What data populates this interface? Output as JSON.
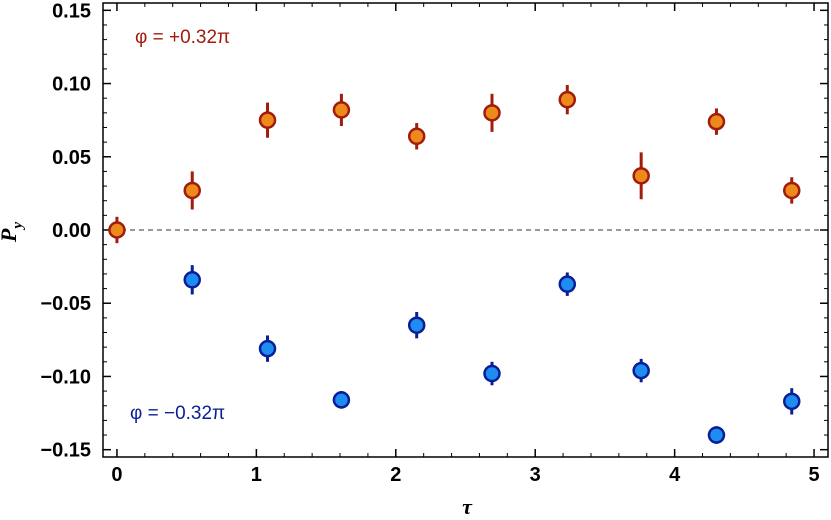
{
  "chart_data": {
    "type": "scatter",
    "title": "",
    "xlabel": "τ",
    "ylabel": "P",
    "ylabel_sub": "y",
    "xlim": [
      -0.1,
      5.1
    ],
    "ylim": [
      -0.155,
      0.155
    ],
    "xticks": [
      0,
      1,
      2,
      3,
      4,
      5
    ],
    "xtick_labels": [
      "0",
      "1",
      "2",
      "3",
      "4",
      "5"
    ],
    "yticks": [
      -0.15,
      -0.1,
      -0.05,
      0.0,
      0.05,
      0.1,
      0.15
    ],
    "ytick_labels": [
      "-0.15",
      "-0.10",
      "-0.05",
      "0.00",
      "0.05",
      "0.10",
      "0.15"
    ],
    "grid": false,
    "reference_line": {
      "y": 0,
      "style": "dashed"
    },
    "series": [
      {
        "name": "φ = +0.32π",
        "fill": "#ee8a1c",
        "stroke": "#a01c0c",
        "points": [
          {
            "x": 0.0,
            "y": 0.0,
            "err": 0.009
          },
          {
            "x": 0.54,
            "y": 0.027,
            "err": 0.013
          },
          {
            "x": 1.08,
            "y": 0.075,
            "err": 0.012
          },
          {
            "x": 1.61,
            "y": 0.082,
            "err": 0.011
          },
          {
            "x": 2.15,
            "y": 0.064,
            "err": 0.009
          },
          {
            "x": 2.69,
            "y": 0.08,
            "err": 0.013
          },
          {
            "x": 3.23,
            "y": 0.089,
            "err": 0.01
          },
          {
            "x": 3.76,
            "y": 0.037,
            "err": 0.016
          },
          {
            "x": 4.3,
            "y": 0.074,
            "err": 0.009
          },
          {
            "x": 4.84,
            "y": 0.027,
            "err": 0.009
          }
        ]
      },
      {
        "name": "φ = −0.32π",
        "fill": "#1e8cf0",
        "stroke": "#0a1e96",
        "points": [
          {
            "x": 0.54,
            "y": -0.034,
            "err": 0.01
          },
          {
            "x": 1.08,
            "y": -0.081,
            "err": 0.009
          },
          {
            "x": 1.61,
            "y": -0.116,
            "err": 0.006
          },
          {
            "x": 2.15,
            "y": -0.065,
            "err": 0.009
          },
          {
            "x": 2.69,
            "y": -0.098,
            "err": 0.008
          },
          {
            "x": 3.23,
            "y": -0.037,
            "err": 0.008
          },
          {
            "x": 3.76,
            "y": -0.096,
            "err": 0.008
          },
          {
            "x": 4.3,
            "y": -0.14,
            "err": 0.006
          },
          {
            "x": 4.84,
            "y": -0.117,
            "err": 0.009
          }
        ]
      }
    ],
    "annotations": [
      {
        "text": "φ = +0.32π",
        "color": "#a01c0c",
        "placement": "top-left"
      },
      {
        "text": "φ = −0.32π",
        "color": "#0a1e96",
        "placement": "bottom-left"
      }
    ]
  }
}
